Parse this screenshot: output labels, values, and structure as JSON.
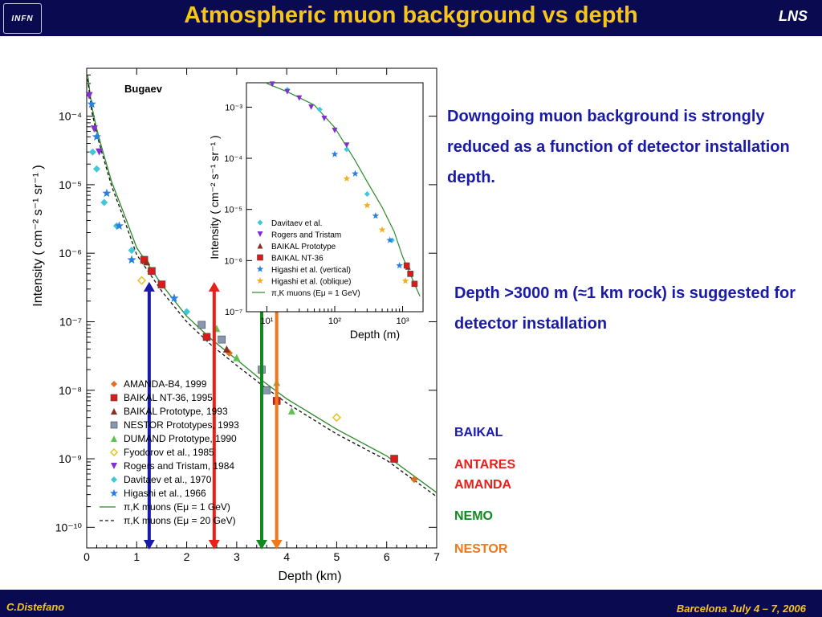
{
  "header": {
    "logo_text": "INFN",
    "title": "Atmospheric muon background vs depth",
    "right_label": "LNS"
  },
  "footer": {
    "author": "C.Distefano",
    "conference": "Barcelona July 4 – 7, 2006"
  },
  "notes": {
    "line1": "Downgoing muon background is strongly reduced as a function of detector installation depth.",
    "line2": "Depth >3000 m (≈1 km rock) is suggested for detector installation"
  },
  "experiments": [
    {
      "name": "BAIKAL",
      "color": "#1a1aa8"
    },
    {
      "name": "ANTARES",
      "color": "#e8201a"
    },
    {
      "name": "AMANDA",
      "color": "#e8201a"
    },
    {
      "name": "NEMO",
      "color": "#0f8a1e"
    },
    {
      "name": "NESTOR",
      "color": "#f07818"
    }
  ],
  "chart_data": [
    {
      "type": "scatter",
      "scale_y": "log",
      "xlim": [
        0,
        7
      ],
      "ylim": [
        5e-11,
        0.0005
      ],
      "xlabel": "Depth  (km)",
      "ylabel": "Intensity  ( cm⁻² s⁻¹ sr⁻¹ )",
      "x_ticks": [
        "0",
        "1",
        "2",
        "3",
        "4",
        "5",
        "6",
        "7"
      ],
      "y_ticks": [
        {
          "value": 0.0001,
          "label": "10⁻⁴"
        },
        {
          "value": 1e-05,
          "label": "10⁻⁵"
        },
        {
          "value": 1e-06,
          "label": "10⁻⁶"
        },
        {
          "value": 1e-07,
          "label": "10⁻⁷"
        },
        {
          "value": 1e-08,
          "label": "10⁻⁸"
        },
        {
          "value": 1e-09,
          "label": "10⁻⁹"
        },
        {
          "value": 1e-10,
          "label": "10⁻¹⁰"
        }
      ],
      "annotation": "Bugaev",
      "legend_position": "bottom-left",
      "series": [
        {
          "name": "AMANDA-B4, 1999",
          "marker": "diamond",
          "color": "#e07020",
          "points": [
            [
              2.85,
              3.5e-08
            ],
            [
              6.55,
              5e-10
            ]
          ]
        },
        {
          "name": "BAIKAL NT-36, 1995",
          "marker": "square",
          "color": "#dd1a1a",
          "points": [
            [
              1.15,
              8e-07
            ],
            [
              1.3,
              5.5e-07
            ],
            [
              1.5,
              3.5e-07
            ],
            [
              2.4,
              6e-08
            ],
            [
              3.8,
              7e-09
            ],
            [
              6.15,
              1e-09
            ]
          ]
        },
        {
          "name": "BAIKAL Prototype, 1993",
          "marker": "triangle-up",
          "color": "#8a3020",
          "points": [
            [
              1.2,
              7.5e-07
            ],
            [
              2.8,
              4e-08
            ]
          ]
        },
        {
          "name": "NESTOR Prototypes, 1993",
          "marker": "square",
          "color": "#8898b0",
          "points": [
            [
              2.3,
              9e-08
            ],
            [
              2.7,
              5.5e-08
            ],
            [
              3.5,
              2e-08
            ],
            [
              3.6,
              1e-08
            ]
          ]
        },
        {
          "name": "DUMAND Prototype, 1990",
          "marker": "triangle-up",
          "color": "#60c050",
          "points": [
            [
              2.6,
              8e-08
            ],
            [
              3.0,
              3e-08
            ],
            [
              3.8,
              1.3e-08
            ],
            [
              4.1,
              5e-09
            ]
          ]
        },
        {
          "name": "Fyodorov et al., 1985",
          "marker": "diamond-open",
          "color": "#e8c020",
          "points": [
            [
              1.1,
              4e-07
            ],
            [
              5.0,
              4e-09
            ]
          ]
        },
        {
          "name": "Rogers and Tristam, 1984",
          "marker": "triangle-down",
          "color": "#8030d0",
          "points": [
            [
              0.05,
              0.0002
            ],
            [
              0.15,
              6.5e-05
            ],
            [
              0.25,
              3e-05
            ]
          ]
        },
        {
          "name": "Davitaev et al., 1970",
          "marker": "diamond",
          "color": "#40c8d8",
          "points": [
            [
              0.12,
              3e-05
            ],
            [
              0.2,
              1.7e-05
            ],
            [
              0.35,
              5.5e-06
            ],
            [
              0.6,
              2.5e-06
            ],
            [
              0.9,
              1.1e-06
            ],
            [
              2.0,
              1.4e-07
            ]
          ]
        },
        {
          "name": "Higashi et al., 1966",
          "marker": "star",
          "color": "#2a80e0",
          "points": [
            [
              0.1,
              0.00015
            ],
            [
              0.2,
              5e-05
            ],
            [
              0.4,
              7.5e-06
            ],
            [
              0.65,
              2.5e-06
            ],
            [
              0.9,
              8e-07
            ],
            [
              1.75,
              2.2e-07
            ]
          ]
        },
        {
          "name": "π,K muons (Eμ = 1 GeV)",
          "line": "solid",
          "color": "#2a8a2a",
          "points": [
            [
              0.02,
              0.0004
            ],
            [
              0.1,
              0.00014
            ],
            [
              0.2,
              6.5e-05
            ],
            [
              0.3,
              3.5e-05
            ],
            [
              0.5,
              1.1e-05
            ],
            [
              0.75,
              3.7e-06
            ],
            [
              1.0,
              1.2e-06
            ],
            [
              1.5,
              3.5e-07
            ],
            [
              2.0,
              1.2e-07
            ],
            [
              2.5,
              5.5e-08
            ],
            [
              3.0,
              2.8e-08
            ],
            [
              3.5,
              1.4e-08
            ],
            [
              4.0,
              7.5e-09
            ],
            [
              5.0,
              2.7e-09
            ],
            [
              6.0,
              1.1e-09
            ],
            [
              7.0,
              3.2e-10
            ]
          ]
        },
        {
          "name": "π,K muons (Eμ = 20 GeV)",
          "line": "dashed",
          "color": "#111111",
          "points": [
            [
              0.02,
              0.00035
            ],
            [
              0.1,
              0.00012
            ],
            [
              0.2,
              5.5e-05
            ],
            [
              0.3,
              3e-05
            ],
            [
              0.5,
              9.5e-06
            ],
            [
              0.75,
              3.1e-06
            ],
            [
              1.0,
              9.5e-07
            ],
            [
              1.5,
              2.8e-07
            ],
            [
              2.0,
              1e-07
            ],
            [
              2.5,
              4.5e-08
            ],
            [
              3.0,
              2.3e-08
            ],
            [
              3.5,
              1.2e-08
            ],
            [
              4.0,
              6.5e-09
            ],
            [
              5.0,
              2.3e-09
            ],
            [
              6.0,
              9.5e-10
            ],
            [
              7.0,
              2.8e-10
            ]
          ]
        }
      ],
      "depth_arrows": [
        {
          "label": "BAIKAL",
          "depth_km": 1.25,
          "color": "#1a1aa8"
        },
        {
          "label": "ANTARES / AMANDA",
          "depth_km": 2.55,
          "color": "#e8201a"
        },
        {
          "label": "NEMO",
          "depth_km": 3.5,
          "color": "#0f8a1e"
        },
        {
          "label": "NESTOR",
          "depth_km": 3.8,
          "color": "#f07818"
        }
      ]
    },
    {
      "type": "scatter",
      "scale_x": "log",
      "scale_y": "log",
      "xlim": [
        5,
        2000
      ],
      "ylim": [
        1e-07,
        0.003
      ],
      "xlabel": "Depth  (m)",
      "ylabel": "Intensity  ( cm⁻² s⁻¹ sr⁻¹ )",
      "x_ticks": [
        {
          "value": 10,
          "label": "10¹"
        },
        {
          "value": 100,
          "label": "10²"
        },
        {
          "value": 1000,
          "label": "10³"
        }
      ],
      "y_ticks": [
        {
          "value": 0.001,
          "label": "10⁻³"
        },
        {
          "value": 0.0001,
          "label": "10⁻⁴"
        },
        {
          "value": 1e-05,
          "label": "10⁻⁵"
        },
        {
          "value": 1e-06,
          "label": "10⁻⁶"
        },
        {
          "value": 1e-07,
          "label": "10⁻⁷"
        }
      ],
      "legend_position": "bottom-left",
      "series": [
        {
          "name": "Davitaev et al.",
          "marker": "diamond",
          "color": "#40c8d8",
          "points": [
            [
              20,
              0.0022
            ],
            [
              60,
              0.0009
            ],
            [
              150,
              0.00015
            ],
            [
              300,
              2e-05
            ],
            [
              700,
              2.5e-06
            ]
          ]
        },
        {
          "name": "Rogers and Tristam",
          "marker": "triangle-down",
          "color": "#8030d0",
          "points": [
            [
              12,
              0.0028
            ],
            [
              20,
              0.002
            ],
            [
              30,
              0.0015
            ],
            [
              45,
              0.001
            ],
            [
              70,
              0.0006
            ],
            [
              100,
              0.00035
            ],
            [
              150,
              0.00018
            ]
          ]
        },
        {
          "name": "BAIKAL Prototype",
          "marker": "triangle-up",
          "color": "#8a3020",
          "points": [
            [
              1200,
              7.5e-07
            ]
          ]
        },
        {
          "name": "BAIKAL NT-36",
          "marker": "square",
          "color": "#dd1a1a",
          "points": [
            [
              1150,
              8e-07
            ],
            [
              1300,
              5.5e-07
            ],
            [
              1500,
              3.5e-07
            ]
          ]
        },
        {
          "name": "Higashi et al. (vertical)",
          "marker": "star",
          "color": "#2a80e0",
          "points": [
            [
              100,
              0.00012
            ],
            [
              200,
              5e-05
            ],
            [
              400,
              7.5e-06
            ],
            [
              650,
              2.5e-06
            ],
            [
              900,
              8e-07
            ]
          ]
        },
        {
          "name": "Higashi et al. (oblique)",
          "marker": "star",
          "color": "#f0b020",
          "points": [
            [
              150,
              4e-05
            ],
            [
              300,
              1.2e-05
            ],
            [
              500,
              4e-06
            ],
            [
              1100,
              4e-07
            ]
          ]
        },
        {
          "name": "π,K muons (Eμ = 1 GeV)",
          "line": "solid",
          "color": "#2a8a2a",
          "points": [
            [
              10,
              0.0029
            ],
            [
              20,
              0.002
            ],
            [
              50,
              0.0011
            ],
            [
              100,
              0.0004
            ],
            [
              200,
              9e-05
            ],
            [
              300,
              3.5e-05
            ],
            [
              500,
              1.1e-05
            ],
            [
              750,
              3.7e-06
            ],
            [
              1000,
              1.2e-06
            ],
            [
              1500,
              3.5e-07
            ],
            [
              1800,
              2e-07
            ]
          ]
        }
      ]
    }
  ]
}
